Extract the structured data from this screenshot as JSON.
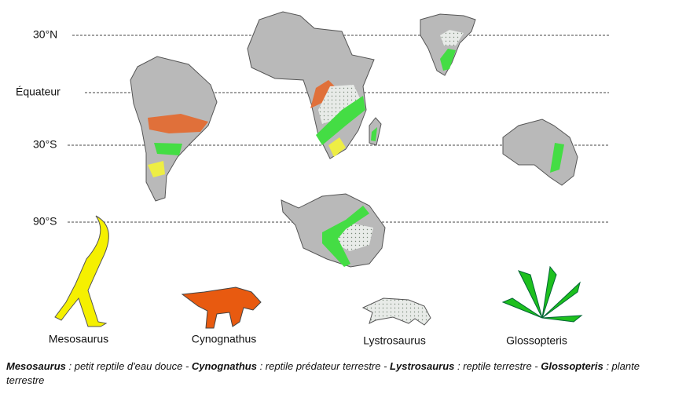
{
  "latitudes": [
    "30°N",
    "Équateur",
    "30°S",
    "90°S"
  ],
  "species": [
    "Mesosaurus",
    "Cynognathus",
    "Lystrosaurus",
    "Glossopteris"
  ],
  "caption": [
    "Mesosaurus",
    " : petit reptile d'eau douce - ",
    "Cynognathus",
    " : reptile prédateur terrestre - ",
    "Lystrosaurus",
    " : reptile terrestre - ",
    "Glossopteris",
    " : plante terrestre"
  ]
}
